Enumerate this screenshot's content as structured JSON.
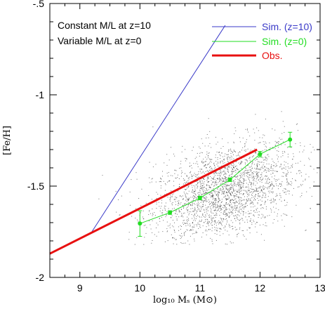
{
  "chart_data": {
    "type": "scatter",
    "xlabel": "log₁₀ Mₛ (M⊙)",
    "ylabel": "[Fe/H]",
    "xlim": [
      8.5,
      13
    ],
    "ylim": [
      -2.0,
      -0.5
    ],
    "x_ticks": [
      9,
      10,
      11,
      12,
      13
    ],
    "y_ticks": [
      -0.5,
      -1,
      -1.5,
      -2
    ],
    "x_tick_labels": [
      "9",
      "10",
      "11",
      "12",
      "13"
    ],
    "y_tick_labels": [
      "-.5",
      "-1",
      "-1.5",
      "-2"
    ],
    "annotations": [
      "Constant M/L at z=10",
      "Variable M/L at z=0"
    ],
    "legend_position": "top-right",
    "series": [
      {
        "name": "Sim. (z=10)",
        "kind": "line",
        "color": "#3a3ac8",
        "x": [
          9.2,
          11.42
        ],
        "y": [
          -1.75,
          -0.62
        ]
      },
      {
        "name": "Sim. (z=0)",
        "kind": "line-with-errorbars",
        "color": "#22dd22",
        "x": [
          10.0,
          10.5,
          11.0,
          11.5,
          12.0,
          12.5
        ],
        "y": [
          -1.705,
          -1.645,
          -1.565,
          -1.465,
          -1.325,
          -1.245
        ],
        "yerr": [
          0.07,
          0.01,
          0.01,
          0.01,
          0.015,
          0.04
        ]
      },
      {
        "name": "Obs.",
        "kind": "line",
        "color": "#e81010",
        "x": [
          8.5,
          11.95
        ],
        "y": [
          -1.87,
          -1.3
        ]
      }
    ],
    "background_scatter": {
      "color": "#000000",
      "description": "dense cloud of simulated galaxy points",
      "center_x": 11.4,
      "center_y": -1.53,
      "spread_x": 0.6,
      "spread_y": 0.13,
      "count": 2600
    }
  }
}
